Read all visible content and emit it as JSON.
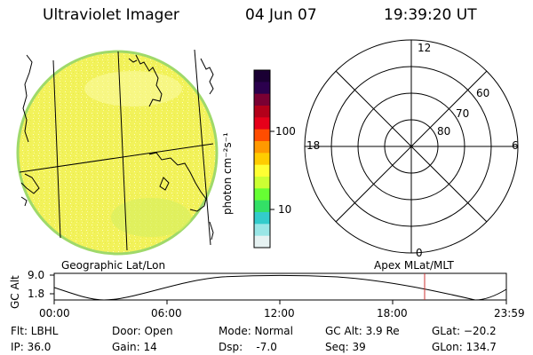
{
  "header": {
    "instrument": "Ultraviolet Imager",
    "date": "04 Jun 07",
    "time": "19:39:20 UT"
  },
  "colorbar": {
    "label": "photon cm⁻²s⁻¹",
    "scale": "log",
    "tick_labels": [
      "100",
      "10"
    ],
    "colors_top_to_bottom": [
      "#1a0033",
      "#2b004d",
      "#7a0033",
      "#b3001a",
      "#e6001a",
      "#ff4d00",
      "#ff9900",
      "#ffcc00",
      "#ffff33",
      "#ccff33",
      "#66ff33",
      "#33e066",
      "#33cccc",
      "#99e6e6",
      "#e6f2f2"
    ]
  },
  "earth_map": {
    "label": "Geographic Lat/Lon",
    "fill_color": "#f2f25a",
    "edge_color": "#9fd96a"
  },
  "polar_plot": {
    "label": "Apex MLat/MLT",
    "lat_labels": [
      "60",
      "70",
      "80"
    ],
    "mlt_labels": {
      "top": "12",
      "left": "18",
      "right": "6",
      "bottom": "0"
    }
  },
  "altitude_plot": {
    "ylabel": "GC Alt",
    "yticks": [
      "9.0",
      "1.8"
    ],
    "xticks": [
      "00:00",
      "06:00",
      "12:00",
      "18:00",
      "23:59"
    ],
    "current_time_marker": "19:39",
    "marker_color": "#cc3333"
  },
  "info": {
    "flt": "Flt: LBHL",
    "ip": "IP: 36.0",
    "door": "Door: Open",
    "gain": "Gain: 14",
    "mode": "Mode: Normal",
    "dsp": "Dsp:    -7.0",
    "gc_alt": "GC Alt: 3.9 Re",
    "seq": "Seq: 39",
    "glat": "GLat: −20.2",
    "glon": "GLon: 134.7"
  }
}
